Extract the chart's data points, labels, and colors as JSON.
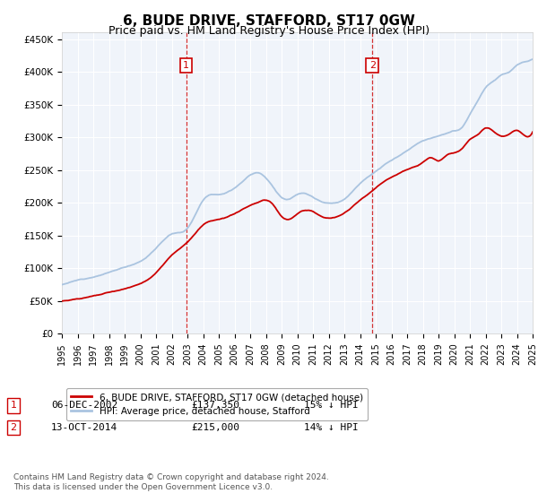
{
  "title": "6, BUDE DRIVE, STAFFORD, ST17 0GW",
  "subtitle": "Price paid vs. HM Land Registry's House Price Index (HPI)",
  "title_fontsize": 11,
  "subtitle_fontsize": 9,
  "ylim": [
    0,
    460000
  ],
  "yticks": [
    0,
    50000,
    100000,
    150000,
    200000,
    250000,
    300000,
    350000,
    400000,
    450000
  ],
  "ytick_labels": [
    "£0",
    "£50K",
    "£100K",
    "£150K",
    "£200K",
    "£250K",
    "£300K",
    "£350K",
    "£400K",
    "£450K"
  ],
  "sale1_date": 2002.92,
  "sale1_price": 137350,
  "sale1_label": "1",
  "sale2_date": 2014.79,
  "sale2_price": 215000,
  "sale2_label": "2",
  "hpi_color": "#aac4e0",
  "price_color": "#cc0000",
  "vline_color": "#cc0000",
  "background_color": "#f0f4fa",
  "grid_color": "#ffffff",
  "legend_label_price": "6, BUDE DRIVE, STAFFORD, ST17 0GW (detached house)",
  "legend_label_hpi": "HPI: Average price, detached house, Stafford",
  "table_row1": [
    "1",
    "06-DEC-2002",
    "£137,350",
    "15% ↓ HPI"
  ],
  "table_row2": [
    "2",
    "13-OCT-2014",
    "£215,000",
    "14% ↓ HPI"
  ],
  "footnote": "Contains HM Land Registry data © Crown copyright and database right 2024.\nThis data is licensed under the Open Government Licence v3.0.",
  "xmin": 1995,
  "xmax": 2025
}
